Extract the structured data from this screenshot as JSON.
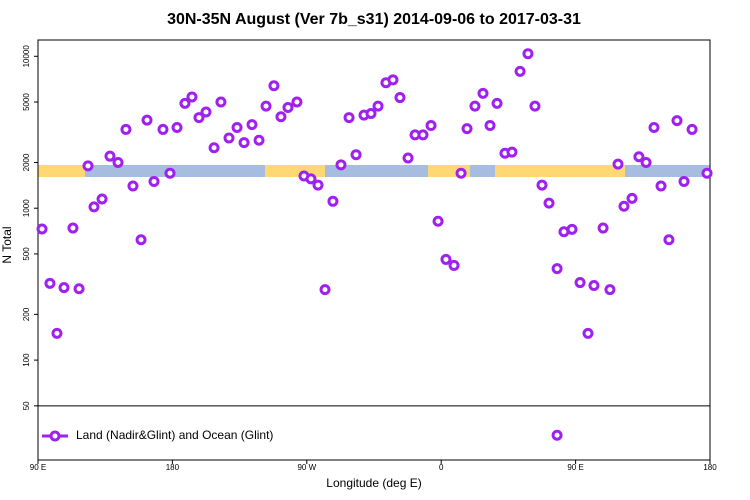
{
  "chart_data": {
    "type": "scatter",
    "title": "30N-35N August (Ver 7b_s31)   2014-09-06 to 2017-03-31",
    "xlabel": "Longitude (deg E)",
    "ylabel": "N Total",
    "ylog": true,
    "xlim": [
      90,
      540
    ],
    "ylim": [
      22,
      12800
    ],
    "xticks": [
      {
        "value": 90,
        "label": "90 E"
      },
      180,
      {
        "value": 270,
        "label": "90 W"
      },
      {
        "value": 360,
        "label": "0"
      },
      {
        "value": 450,
        "label": "90 E"
      },
      {
        "value": 540,
        "label": "180"
      }
    ],
    "yticks": [
      50,
      100,
      200,
      500,
      1000,
      2000,
      5000,
      10000
    ],
    "legend": "bottom-left",
    "series": [
      {
        "name": "Land (Nadir&Glint) and Ocean (Glint)",
        "color": "#a020f0",
        "x": [
          92.7,
          98,
          102.7,
          107.4,
          113.4,
          117.5,
          123.5,
          127.5,
          132.9,
          138.2,
          143.6,
          148.9,
          153.6,
          159,
          163,
          167.7,
          173.7,
          178.4,
          183.1,
          188.4,
          193.1,
          197.8,
          202.5,
          207.9,
          212.5,
          217.9,
          223.3,
          228,
          233.3,
          238,
          242.7,
          248,
          252.7,
          257.4,
          263.4,
          268.1,
          272.8,
          277.5,
          282.2,
          287.5,
          292.9,
          298.3,
          303,
          308.3,
          313,
          317.7,
          323,
          327.7,
          332.4,
          337.8,
          342.5,
          347.8,
          353.2,
          357.9,
          363.2,
          368.6,
          373.3,
          377.3,
          382.6,
          388,
          392.7,
          397.4,
          402.7,
          407.4,
          412.8,
          418.1,
          422.8,
          427.5,
          432.2,
          437.6,
          442.2,
          447.6,
          453,
          458.3,
          462.3,
          468.4,
          473,
          478.4,
          482.4,
          487.8,
          492.4,
          497.2,
          502.5,
          507.2,
          512.5,
          517.9,
          522.6,
          528,
          538,
          437.6
        ],
        "values": [
          730,
          320,
          150,
          300,
          740,
          295,
          1900,
          1020,
          1150,
          2200,
          2000,
          3300,
          1400,
          620,
          3800,
          1500,
          3300,
          1700,
          3400,
          4900,
          5400,
          3950,
          4300,
          2500,
          5000,
          2900,
          3400,
          2700,
          3550,
          2800,
          4700,
          6400,
          4000,
          4600,
          5000,
          1630,
          1560,
          1420,
          291,
          1110,
          1930,
          3950,
          2250,
          4100,
          4200,
          4700,
          6700,
          7000,
          5350,
          2140,
          3040,
          3040,
          3500,
          820,
          460,
          420,
          1700,
          3340,
          4700,
          5700,
          3500,
          4900,
          2300,
          2340,
          7960,
          10400,
          4700,
          1420,
          1080,
          400,
          700,
          726,
          324,
          150,
          310,
          740,
          291,
          1950,
          1030,
          1160,
          2180,
          2000,
          3400,
          1400,
          620,
          3770,
          1500,
          3300,
          1700,
          32
        ]
      }
    ]
  }
}
